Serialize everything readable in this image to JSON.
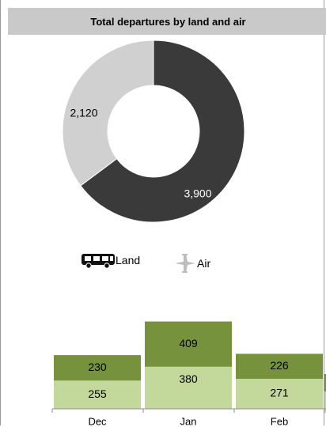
{
  "chart_data": [
    {
      "type": "pie",
      "title": "Total departures by land and air",
      "donut": true,
      "slices": [
        {
          "name": "Land",
          "value": 3900,
          "label": "3,900",
          "color": "#3a3a3a",
          "label_color": "#ffffff"
        },
        {
          "name": "Air",
          "value": 2120,
          "label": "2,120",
          "color": "#d0d0d0",
          "label_color": "#000000"
        }
      ],
      "legend": {
        "position": "bottom",
        "items": [
          {
            "name": "Land",
            "icon": "bus-icon"
          },
          {
            "name": "Air",
            "icon": "airplane-icon"
          }
        ]
      }
    },
    {
      "type": "bar",
      "stacked": true,
      "categories": [
        "Dec",
        "Jan",
        "Feb"
      ],
      "series": [
        {
          "values": [
            255,
            380,
            271
          ],
          "labels": [
            "255",
            "380",
            "271"
          ],
          "color": "#c3d89b"
        },
        {
          "values": [
            230,
            409,
            226
          ],
          "labels": [
            "230",
            "409",
            "226"
          ],
          "color": "#76923c"
        }
      ]
    }
  ]
}
